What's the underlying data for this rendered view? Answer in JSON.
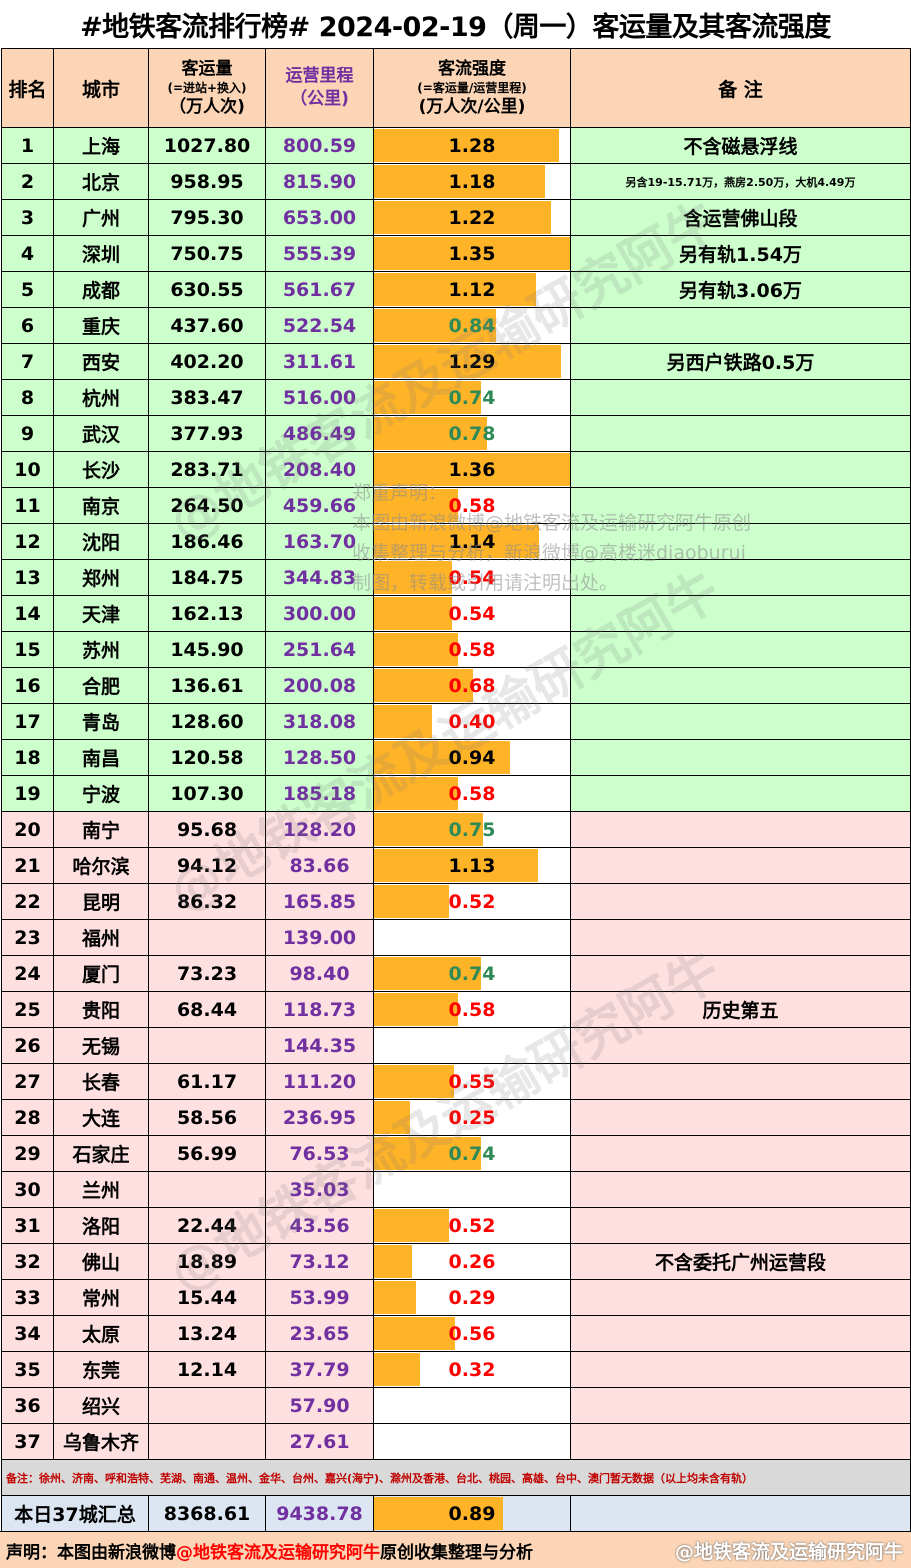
{
  "title": "#地铁客流排行榜# 2024-02-19（周一）客运量及其客流强度",
  "headers": {
    "rank": "排名",
    "city": "城市",
    "volume_l1": "客运量",
    "volume_l2": "(=进站+换入)",
    "volume_l3": "（万人次)",
    "mileage_l1": "运营里程",
    "mileage_l2": "（公里)",
    "intensity_l1": "客流强度",
    "intensity_l2": "(=客运量/运营里程)",
    "intensity_l3": "(万人次/公里)",
    "note": "备 注"
  },
  "colors": {
    "header": "#fbd5b5",
    "top_group": "#ccffcc",
    "bottom_group": "#ffe0e0",
    "bar": "#ffb327",
    "mileage_text": "#7030a0",
    "low_intensity": "#ff0000",
    "mid_intensity": "#2e8b57",
    "high_intensity": "#000000"
  },
  "chart_data": {
    "type": "table",
    "bar_max": 1.36,
    "rows": [
      {
        "rank": "1",
        "city": "上海",
        "volume": "1027.80",
        "mileage": "800.59",
        "intensity": "1.28",
        "note": "不含磁悬浮线"
      },
      {
        "rank": "2",
        "city": "北京",
        "volume": "958.95",
        "mileage": "815.90",
        "intensity": "1.18",
        "note": "另含19-15.71万，燕房2.50万，大机4.49万"
      },
      {
        "rank": "3",
        "city": "广州",
        "volume": "795.30",
        "mileage": "653.00",
        "intensity": "1.22",
        "note": "含运营佛山段"
      },
      {
        "rank": "4",
        "city": "深圳",
        "volume": "750.75",
        "mileage": "555.39",
        "intensity": "1.35",
        "note": "另有轨1.54万"
      },
      {
        "rank": "5",
        "city": "成都",
        "volume": "630.55",
        "mileage": "561.67",
        "intensity": "1.12",
        "note": "另有轨3.06万"
      },
      {
        "rank": "6",
        "city": "重庆",
        "volume": "437.60",
        "mileage": "522.54",
        "intensity": "0.84",
        "note": ""
      },
      {
        "rank": "7",
        "city": "西安",
        "volume": "402.20",
        "mileage": "311.61",
        "intensity": "1.29",
        "note": "另西户铁路0.5万"
      },
      {
        "rank": "8",
        "city": "杭州",
        "volume": "383.47",
        "mileage": "516.00",
        "intensity": "0.74",
        "note": ""
      },
      {
        "rank": "9",
        "city": "武汉",
        "volume": "377.93",
        "mileage": "486.49",
        "intensity": "0.78",
        "note": ""
      },
      {
        "rank": "10",
        "city": "长沙",
        "volume": "283.71",
        "mileage": "208.40",
        "intensity": "1.36",
        "note": ""
      },
      {
        "rank": "11",
        "city": "南京",
        "volume": "264.50",
        "mileage": "459.66",
        "intensity": "0.58",
        "note": ""
      },
      {
        "rank": "12",
        "city": "沈阳",
        "volume": "186.46",
        "mileage": "163.70",
        "intensity": "1.14",
        "note": ""
      },
      {
        "rank": "13",
        "city": "郑州",
        "volume": "184.75",
        "mileage": "344.83",
        "intensity": "0.54",
        "note": ""
      },
      {
        "rank": "14",
        "city": "天津",
        "volume": "162.13",
        "mileage": "300.00",
        "intensity": "0.54",
        "note": ""
      },
      {
        "rank": "15",
        "city": "苏州",
        "volume": "145.90",
        "mileage": "251.64",
        "intensity": "0.58",
        "note": ""
      },
      {
        "rank": "16",
        "city": "合肥",
        "volume": "136.61",
        "mileage": "200.08",
        "intensity": "0.68",
        "note": ""
      },
      {
        "rank": "17",
        "city": "青岛",
        "volume": "128.60",
        "mileage": "318.08",
        "intensity": "0.40",
        "note": ""
      },
      {
        "rank": "18",
        "city": "南昌",
        "volume": "120.58",
        "mileage": "128.50",
        "intensity": "0.94",
        "note": ""
      },
      {
        "rank": "19",
        "city": "宁波",
        "volume": "107.30",
        "mileage": "185.18",
        "intensity": "0.58",
        "note": ""
      },
      {
        "rank": "20",
        "city": "南宁",
        "volume": "95.68",
        "mileage": "128.20",
        "intensity": "0.75",
        "note": ""
      },
      {
        "rank": "21",
        "city": "哈尔滨",
        "volume": "94.12",
        "mileage": "83.66",
        "intensity": "1.13",
        "note": ""
      },
      {
        "rank": "22",
        "city": "昆明",
        "volume": "86.32",
        "mileage": "165.85",
        "intensity": "0.52",
        "note": ""
      },
      {
        "rank": "23",
        "city": "福州",
        "volume": "",
        "mileage": "139.00",
        "intensity": "",
        "note": ""
      },
      {
        "rank": "24",
        "city": "厦门",
        "volume": "73.23",
        "mileage": "98.40",
        "intensity": "0.74",
        "note": ""
      },
      {
        "rank": "25",
        "city": "贵阳",
        "volume": "68.44",
        "mileage": "118.73",
        "intensity": "0.58",
        "note": "历史第五"
      },
      {
        "rank": "26",
        "city": "无锡",
        "volume": "",
        "mileage": "144.35",
        "intensity": "",
        "note": ""
      },
      {
        "rank": "27",
        "city": "长春",
        "volume": "61.17",
        "mileage": "111.20",
        "intensity": "0.55",
        "note": ""
      },
      {
        "rank": "28",
        "city": "大连",
        "volume": "58.56",
        "mileage": "236.95",
        "intensity": "0.25",
        "note": ""
      },
      {
        "rank": "29",
        "city": "石家庄",
        "volume": "56.99",
        "mileage": "76.53",
        "intensity": "0.74",
        "note": ""
      },
      {
        "rank": "30",
        "city": "兰州",
        "volume": "",
        "mileage": "35.03",
        "intensity": "",
        "note": ""
      },
      {
        "rank": "31",
        "city": "洛阳",
        "volume": "22.44",
        "mileage": "43.56",
        "intensity": "0.52",
        "note": ""
      },
      {
        "rank": "32",
        "city": "佛山",
        "volume": "18.89",
        "mileage": "73.12",
        "intensity": "0.26",
        "note": "不含委托广州运营段"
      },
      {
        "rank": "33",
        "city": "常州",
        "volume": "15.44",
        "mileage": "53.99",
        "intensity": "0.29",
        "note": ""
      },
      {
        "rank": "34",
        "city": "太原",
        "volume": "13.24",
        "mileage": "23.65",
        "intensity": "0.56",
        "note": ""
      },
      {
        "rank": "35",
        "city": "东莞",
        "volume": "12.14",
        "mileage": "37.79",
        "intensity": "0.32",
        "note": ""
      },
      {
        "rank": "36",
        "city": "绍兴",
        "volume": "",
        "mileage": "57.90",
        "intensity": "",
        "note": ""
      },
      {
        "rank": "37",
        "city": "乌鲁木齐",
        "volume": "",
        "mileage": "27.61",
        "intensity": "",
        "note": ""
      }
    ],
    "total": {
      "label": "本日37城汇总",
      "volume": "8368.61",
      "mileage": "9438.78",
      "intensity": "0.89"
    }
  },
  "footnote": "备注：徐州、济南、呼和浩特、芜湖、南通、温州、金华、台州、嘉兴(海宁)、滁州及香港、台北、桃园、高雄、台中、澳门暂无数据（以上均未含有轨）",
  "notice": {
    "line1": "郑重声明：",
    "line2": "本图由新浪微博@地铁客流及运输研究阿牛原创",
    "line3": "收集整理与分析，新浪微博@高楼迷diaoburui",
    "line4": "制图，转载或引用请注明出处。"
  },
  "bottom": {
    "prefix": "声明：本图由新浪微博",
    "highlight": "@地铁客流及运输研究阿牛",
    "suffix": "原创收集整理与分析",
    "watermark": "@地铁客流及运输研究阿牛"
  },
  "watermark_text": "@地铁客流及运输研究阿牛"
}
